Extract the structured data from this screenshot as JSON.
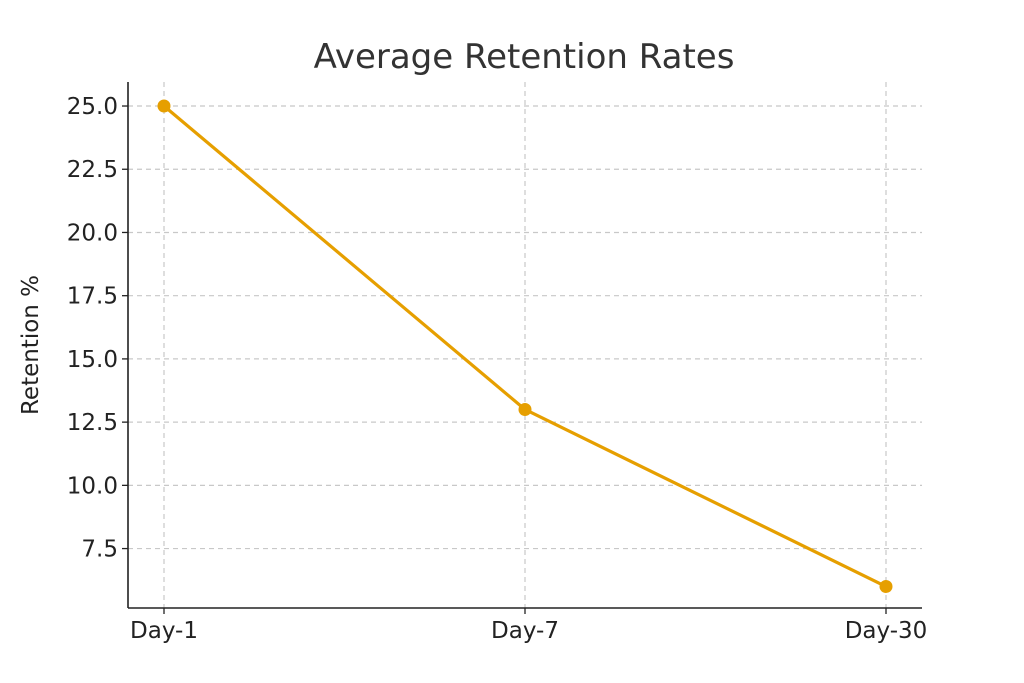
{
  "chart_data": {
    "type": "line",
    "title": "Average Retention Rates",
    "xlabel": "",
    "ylabel": "Retention %",
    "categories": [
      "Day-1",
      "Day-7",
      "Day-30"
    ],
    "series": [
      {
        "values": [
          25.0,
          13.0,
          6.0
        ],
        "color": "#E69F00"
      }
    ],
    "y_ticks": [
      "7.5",
      "10.0",
      "12.5",
      "15.0",
      "17.5",
      "20.0",
      "22.5",
      "25.0"
    ],
    "ylim": [
      5.15,
      25.95
    ],
    "grid": true
  }
}
